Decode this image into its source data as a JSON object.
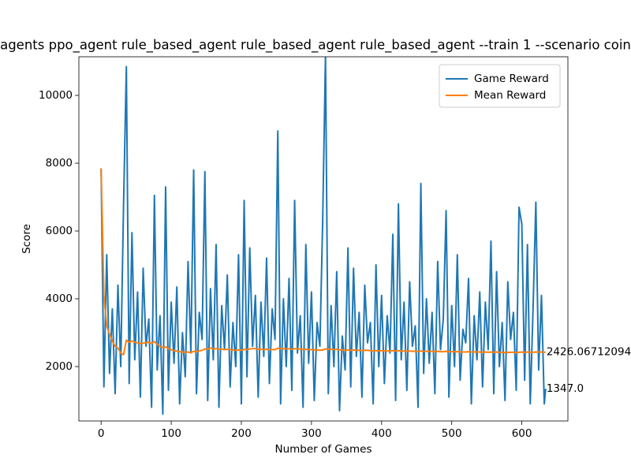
{
  "chart_data": {
    "type": "line",
    "title": "agents ppo_agent rule_based_agent rule_based_agent rule_based_agent --train 1 --scenario coin",
    "xlabel": "Number of Games",
    "ylabel": "Score",
    "x": [
      0,
      4,
      8,
      12,
      16,
      20,
      24,
      28,
      32,
      36,
      40,
      44,
      48,
      52,
      56,
      60,
      64,
      68,
      72,
      76,
      80,
      84,
      88,
      92,
      96,
      100,
      104,
      108,
      112,
      116,
      120,
      124,
      128,
      132,
      136,
      140,
      144,
      148,
      152,
      156,
      160,
      164,
      168,
      172,
      176,
      180,
      184,
      188,
      192,
      196,
      200,
      204,
      208,
      212,
      216,
      220,
      224,
      228,
      232,
      236,
      240,
      244,
      248,
      252,
      256,
      260,
      264,
      268,
      272,
      276,
      280,
      284,
      288,
      292,
      296,
      300,
      304,
      308,
      312,
      316,
      320,
      324,
      328,
      332,
      336,
      340,
      344,
      348,
      352,
      356,
      360,
      364,
      368,
      372,
      376,
      380,
      384,
      388,
      392,
      396,
      400,
      404,
      408,
      412,
      416,
      420,
      424,
      428,
      432,
      436,
      440,
      444,
      448,
      452,
      456,
      460,
      464,
      468,
      472,
      476,
      480,
      484,
      488,
      492,
      496,
      500,
      504,
      508,
      512,
      516,
      520,
      524,
      528,
      532,
      536,
      540,
      544,
      548,
      552,
      556,
      560,
      564,
      568,
      572,
      576,
      580,
      584,
      588,
      592,
      596,
      600,
      604,
      608,
      612,
      616,
      620,
      624,
      628,
      632,
      634
    ],
    "series": [
      {
        "name": "Game Reward",
        "color": "#1f77b4",
        "values": [
          7850,
          1400,
          5300,
          1800,
          3700,
          1200,
          4400,
          2000,
          6750,
          10850,
          1500,
          5950,
          2200,
          4200,
          1100,
          4900,
          2600,
          3400,
          800,
          7050,
          1900,
          3500,
          600,
          7300,
          1300,
          3900,
          2100,
          4350,
          900,
          3000,
          1700,
          5100,
          2400,
          7800,
          1200,
          3600,
          2800,
          7750,
          1000,
          4300,
          2200,
          5600,
          800,
          3800,
          2500,
          4700,
          1400,
          3300,
          2000,
          5300,
          900,
          6900,
          1700,
          5500,
          2600,
          4100,
          1100,
          3900,
          2300,
          5200,
          1500,
          3700,
          2800,
          8950,
          900,
          4000,
          2000,
          4600,
          1300,
          6900,
          2400,
          3500,
          800,
          5600,
          2100,
          4200,
          1000,
          3300,
          2600,
          6300,
          11200,
          1200,
          3800,
          2000,
          4800,
          700,
          2900,
          1900,
          5500,
          1400,
          4900,
          2300,
          3600,
          1100,
          4400,
          2700,
          3300,
          900,
          5000,
          2000,
          4100,
          1500,
          3500,
          2400,
          5900,
          1000,
          6800,
          2200,
          3900,
          1300,
          4500,
          2600,
          3200,
          800,
          7400,
          1800,
          4000,
          2100,
          3600,
          1200,
          5100,
          2500,
          3400,
          6600,
          1100,
          3800,
          2000,
          5300,
          1600,
          3100,
          2700,
          4600,
          900,
          3500,
          2200,
          4200,
          1400,
          3900,
          2500,
          5700,
          1200,
          4800,
          2000,
          3300,
          1000,
          4500,
          2800,
          3600,
          1300,
          6700,
          6200,
          1600,
          5600,
          900,
          3700,
          6850,
          1900,
          4100,
          900,
          1347
        ]
      },
      {
        "name": "Mean Reward",
        "color": "#ff7f0e",
        "values": [
          7850,
          4100,
          3200,
          2950,
          2750,
          2600,
          2550,
          2400,
          2350,
          2780,
          2720,
          2750,
          2720,
          2700,
          2680,
          2690,
          2700,
          2720,
          2680,
          2740,
          2650,
          2600,
          2560,
          2580,
          2530,
          2500,
          2470,
          2460,
          2440,
          2430,
          2420,
          2430,
          2410,
          2450,
          2440,
          2460,
          2480,
          2520,
          2510,
          2550,
          2520,
          2530,
          2510,
          2510,
          2500,
          2510,
          2500,
          2490,
          2480,
          2490,
          2480,
          2510,
          2500,
          2520,
          2530,
          2530,
          2510,
          2510,
          2500,
          2510,
          2500,
          2500,
          2500,
          2540,
          2530,
          2530,
          2520,
          2530,
          2510,
          2530,
          2520,
          2520,
          2500,
          2510,
          2500,
          2500,
          2490,
          2490,
          2480,
          2490,
          2520,
          2510,
          2510,
          2500,
          2510,
          2490,
          2490,
          2480,
          2490,
          2480,
          2490,
          2480,
          2480,
          2470,
          2480,
          2480,
          2470,
          2460,
          2470,
          2460,
          2470,
          2460,
          2460,
          2460,
          2470,
          2460,
          2470,
          2460,
          2460,
          2450,
          2460,
          2450,
          2450,
          2440,
          2460,
          2450,
          2450,
          2450,
          2450,
          2440,
          2450,
          2440,
          2440,
          2450,
          2440,
          2440,
          2440,
          2440,
          2430,
          2430,
          2430,
          2440,
          2430,
          2430,
          2430,
          2430,
          2420,
          2430,
          2420,
          2430,
          2420,
          2430,
          2420,
          2420,
          2410,
          2420,
          2420,
          2420,
          2410,
          2420,
          2430,
          2420,
          2430,
          2420,
          2420,
          2430,
          2430,
          2430,
          2420,
          2426.07
        ]
      }
    ],
    "annotations": [
      {
        "text": "2426.06712094",
        "x": 634,
        "y": 2426.07
      },
      {
        "text": "1347.0",
        "x": 634,
        "y": 1347
      }
    ],
    "xlim": [
      -31.7,
      665.7
    ],
    "ylim": [
      395,
      11140
    ],
    "xticks": [
      0,
      100,
      200,
      300,
      400,
      500,
      600
    ],
    "yticks": [
      2000,
      4000,
      6000,
      8000,
      10000
    ],
    "legend": "upper right"
  }
}
